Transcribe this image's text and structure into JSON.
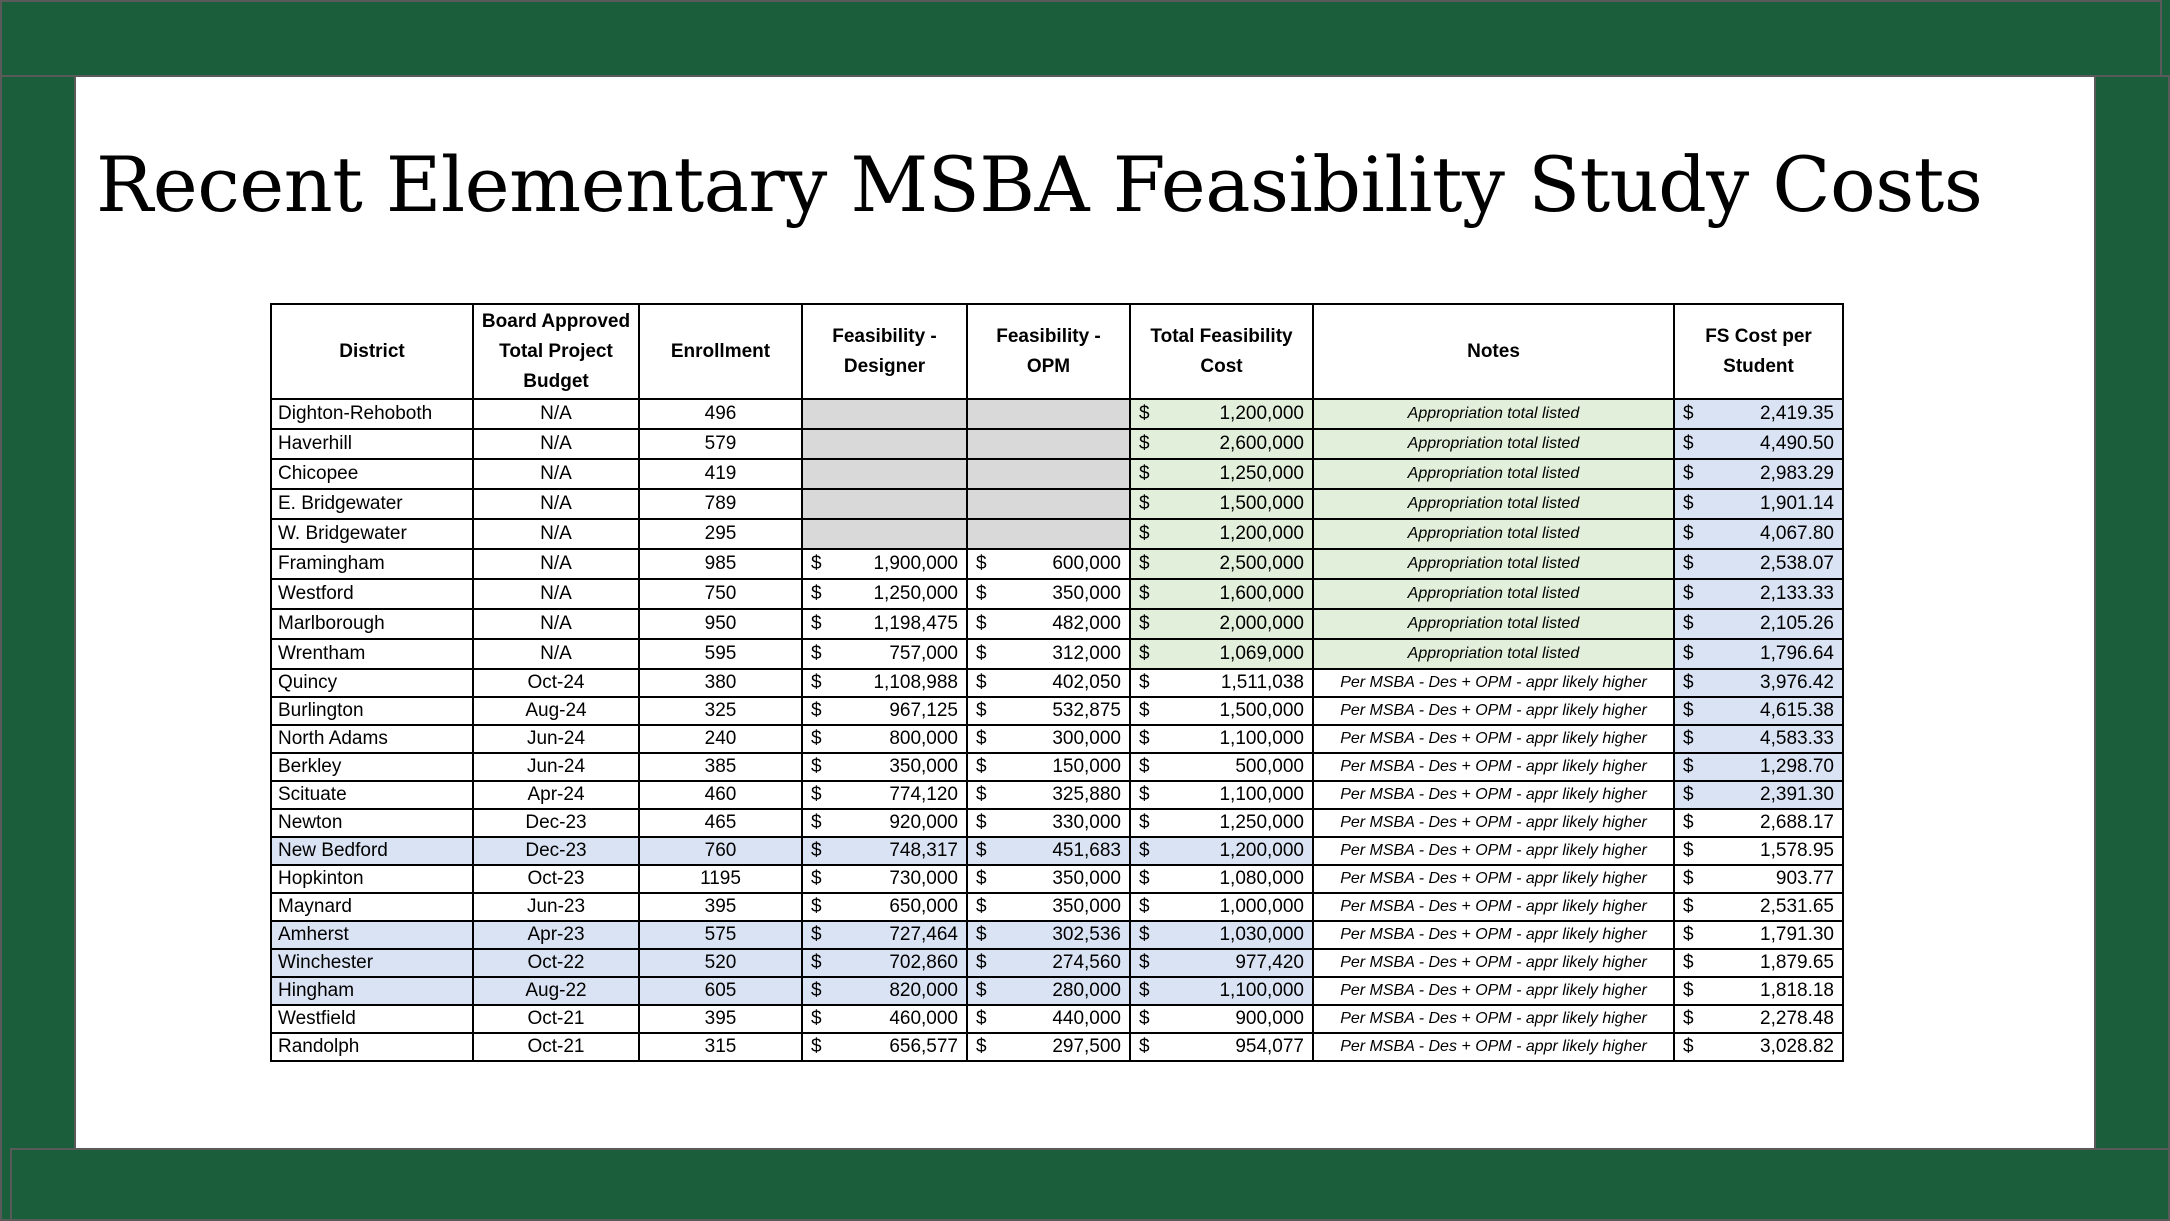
{
  "slide": {
    "title": "Recent Elementary MSBA Feasibility Study Costs"
  },
  "colors": {
    "frame": "#1b5e3b",
    "green_highlight": "#e2efda",
    "blue_highlight": "#dae3f3",
    "grey_fill": "#d9d9d9"
  },
  "table": {
    "headers": [
      "District",
      "Board Approved Total Project Budget",
      "Enrollment",
      "Feasibility - Designer",
      "Feasibility - OPM",
      "Total Feasibility Cost",
      "Notes",
      "FS Cost per Student"
    ],
    "currency_symbol": "$",
    "rows": [
      {
        "district": "Dighton-Rehoboth",
        "budget": "N/A",
        "enrollment": "496",
        "designer": "",
        "opm": "",
        "total": "1,200,000",
        "notes": "Appropriation total listed",
        "per_student": "2,419.35"
      },
      {
        "district": "Haverhill",
        "budget": "N/A",
        "enrollment": "579",
        "designer": "",
        "opm": "",
        "total": "2,600,000",
        "notes": "Appropriation total listed",
        "per_student": "4,490.50"
      },
      {
        "district": "Chicopee",
        "budget": "N/A",
        "enrollment": "419",
        "designer": "",
        "opm": "",
        "total": "1,250,000",
        "notes": "Appropriation total listed",
        "per_student": "2,983.29"
      },
      {
        "district": "E. Bridgewater",
        "budget": "N/A",
        "enrollment": "789",
        "designer": "",
        "opm": "",
        "total": "1,500,000",
        "notes": "Appropriation total listed",
        "per_student": "1,901.14"
      },
      {
        "district": "W. Bridgewater",
        "budget": "N/A",
        "enrollment": "295",
        "designer": "",
        "opm": "",
        "total": "1,200,000",
        "notes": "Appropriation total listed",
        "per_student": "4,067.80"
      },
      {
        "district": "Framingham",
        "budget": "N/A",
        "enrollment": "985",
        "designer": "1,900,000",
        "opm": "600,000",
        "total": "2,500,000",
        "notes": "Appropriation total listed",
        "per_student": "2,538.07"
      },
      {
        "district": "Westford",
        "budget": "N/A",
        "enrollment": "750",
        "designer": "1,250,000",
        "opm": "350,000",
        "total": "1,600,000",
        "notes": "Appropriation total listed",
        "per_student": "2,133.33"
      },
      {
        "district": "Marlborough",
        "budget": "N/A",
        "enrollment": "950",
        "designer": "1,198,475",
        "opm": "482,000",
        "total": "2,000,000",
        "notes": "Appropriation total listed",
        "per_student": "2,105.26"
      },
      {
        "district": "Wrentham",
        "budget": "N/A",
        "enrollment": "595",
        "designer": "757,000",
        "opm": "312,000",
        "total": "1,069,000",
        "notes": "Appropriation total listed",
        "per_student": "1,796.64"
      },
      {
        "district": "Quincy",
        "budget": "Oct-24",
        "enrollment": "380",
        "designer": "1,108,988",
        "opm": "402,050",
        "total": "1,511,038",
        "notes": "Per MSBA - Des + OPM - appr likely higher",
        "per_student": "3,976.42"
      },
      {
        "district": "Burlington",
        "budget": "Aug-24",
        "enrollment": "325",
        "designer": "967,125",
        "opm": "532,875",
        "total": "1,500,000",
        "notes": "Per MSBA - Des + OPM - appr likely higher",
        "per_student": "4,615.38"
      },
      {
        "district": "North Adams",
        "budget": "Jun-24",
        "enrollment": "240",
        "designer": "800,000",
        "opm": "300,000",
        "total": "1,100,000",
        "notes": "Per MSBA - Des + OPM - appr likely higher",
        "per_student": "4,583.33"
      },
      {
        "district": "Berkley",
        "budget": "Jun-24",
        "enrollment": "385",
        "designer": "350,000",
        "opm": "150,000",
        "total": "500,000",
        "notes": "Per MSBA - Des + OPM - appr likely higher",
        "per_student": "1,298.70"
      },
      {
        "district": "Scituate",
        "budget": "Apr-24",
        "enrollment": "460",
        "designer": "774,120",
        "opm": "325,880",
        "total": "1,100,000",
        "notes": "Per MSBA - Des + OPM - appr likely higher",
        "per_student": "2,391.30"
      },
      {
        "district": "Newton",
        "budget": "Dec-23",
        "enrollment": "465",
        "designer": "920,000",
        "opm": "330,000",
        "total": "1,250,000",
        "notes": "Per MSBA - Des + OPM - appr likely higher",
        "per_student": "2,688.17"
      },
      {
        "district": "New Bedford",
        "budget": "Dec-23",
        "enrollment": "760",
        "designer": "748,317",
        "opm": "451,683",
        "total": "1,200,000",
        "notes": "Per MSBA - Des + OPM - appr likely higher",
        "per_student": "1,578.95"
      },
      {
        "district": "Hopkinton",
        "budget": "Oct-23",
        "enrollment": "1195",
        "designer": "730,000",
        "opm": "350,000",
        "total": "1,080,000",
        "notes": "Per MSBA - Des + OPM - appr likely higher",
        "per_student": "903.77"
      },
      {
        "district": "Maynard",
        "budget": "Jun-23",
        "enrollment": "395",
        "designer": "650,000",
        "opm": "350,000",
        "total": "1,000,000",
        "notes": "Per MSBA - Des + OPM - appr likely higher",
        "per_student": "2,531.65"
      },
      {
        "district": "Amherst",
        "budget": "Apr-23",
        "enrollment": "575",
        "designer": "727,464",
        "opm": "302,536",
        "total": "1,030,000",
        "notes": "Per MSBA - Des + OPM - appr likely higher",
        "per_student": "1,791.30"
      },
      {
        "district": "Winchester",
        "budget": "Oct-22",
        "enrollment": "520",
        "designer": "702,860",
        "opm": "274,560",
        "total": "977,420",
        "notes": "Per MSBA - Des + OPM - appr likely higher",
        "per_student": "1,879.65"
      },
      {
        "district": "Hingham",
        "budget": "Aug-22",
        "enrollment": "605",
        "designer": "820,000",
        "opm": "280,000",
        "total": "1,100,000",
        "notes": "Per MSBA - Des + OPM - appr likely higher",
        "per_student": "1,818.18"
      },
      {
        "district": "Westfield",
        "budget": "Oct-21",
        "enrollment": "395",
        "designer": "460,000",
        "opm": "440,000",
        "total": "900,000",
        "notes": "Per MSBA - Des + OPM - appr likely higher",
        "per_student": "2,278.48"
      },
      {
        "district": "Randolph",
        "budget": "Oct-21",
        "enrollment": "315",
        "designer": "656,577",
        "opm": "297,500",
        "total": "954,077",
        "notes": "Per MSBA - Des + OPM - appr likely higher",
        "per_student": "3,028.82"
      }
    ]
  }
}
